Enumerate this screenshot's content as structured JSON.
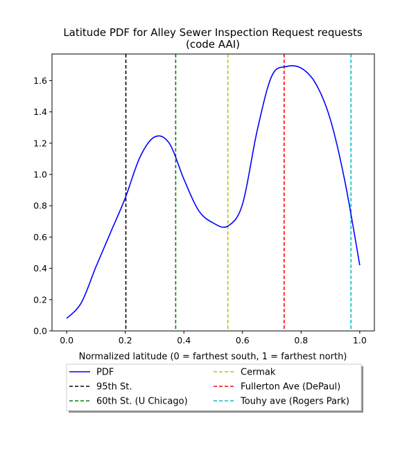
{
  "chart_data": {
    "type": "line",
    "title": "Latitude PDF for Alley Sewer Inspection Request  requests",
    "subtitle": "(code AAI)",
    "xlabel": "Normalized latitude (0 = farthest south, 1 = farthest north)",
    "ylabel": "",
    "xlim": [
      -0.05,
      1.05
    ],
    "ylim": [
      0.0,
      1.77
    ],
    "x_ticks": [
      0.0,
      0.2,
      0.4,
      0.6,
      0.8,
      1.0
    ],
    "x_tick_labels": [
      "0.0",
      "0.2",
      "0.4",
      "0.6",
      "0.8",
      "1.0"
    ],
    "y_ticks": [
      0.0,
      0.2,
      0.4,
      0.6,
      0.8,
      1.0,
      1.2,
      1.4,
      1.6
    ],
    "y_tick_labels": [
      "0.0",
      "0.2",
      "0.4",
      "0.6",
      "0.8",
      "1.0",
      "1.2",
      "1.4",
      "1.6"
    ],
    "grid": false,
    "legend_position": "below",
    "series": [
      {
        "name": "PDF",
        "color": "#0000ff",
        "x": [
          0.0,
          0.05,
          0.1,
          0.15,
          0.2,
          0.25,
          0.3,
          0.35,
          0.4,
          0.45,
          0.5,
          0.55,
          0.6,
          0.65,
          0.7,
          0.75,
          0.8,
          0.85,
          0.9,
          0.95,
          1.0
        ],
        "y": [
          0.08,
          0.18,
          0.41,
          0.63,
          0.85,
          1.11,
          1.24,
          1.2,
          0.97,
          0.77,
          0.69,
          0.67,
          0.81,
          1.28,
          1.63,
          1.69,
          1.68,
          1.58,
          1.35,
          0.95,
          0.42
        ]
      }
    ],
    "reference_lines": [
      {
        "name": "95th St.",
        "x": 0.202,
        "color": "#000000"
      },
      {
        "name": "60th St. (U Chicago)",
        "x": 0.372,
        "color": "#008000"
      },
      {
        "name": "Cermak",
        "x": 0.55,
        "color": "#bfbf00"
      },
      {
        "name": "Fullerton Ave (DePaul)",
        "x": 0.742,
        "color": "#ff0000"
      },
      {
        "name": "Touhy ave (Rogers Park)",
        "x": 0.97,
        "color": "#00bfbf"
      }
    ]
  }
}
